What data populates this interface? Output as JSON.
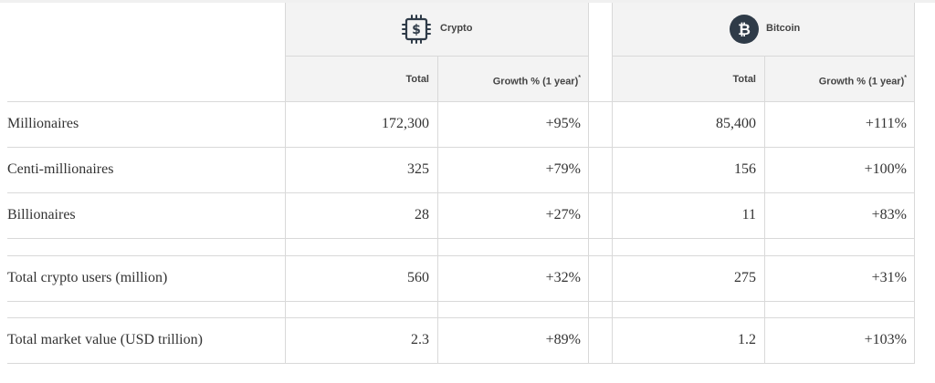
{
  "columns": [
    {
      "name": "Crypto",
      "icon": "dollar-chip-icon",
      "sub": [
        "Total",
        "Growth % (1 year)"
      ],
      "footnote": "*"
    },
    {
      "name": "Bitcoin",
      "icon": "bitcoin-icon",
      "sub": [
        "Total",
        "Growth % (1 year)"
      ],
      "footnote": "*"
    }
  ],
  "rows": [
    {
      "label": "Millionaires",
      "values": [
        "172,300",
        "+95%",
        "85,400",
        "+111%"
      ]
    },
    {
      "label": "Centi-millionaires",
      "values": [
        "325",
        "+79%",
        "156",
        "+100%"
      ]
    },
    {
      "label": "Billionaires",
      "values": [
        "28",
        "+27%",
        "11",
        "+83%"
      ]
    },
    {
      "label": "Total crypto users (million)",
      "values": [
        "560",
        "+32%",
        "275",
        "+31%"
      ]
    },
    {
      "label": "Total market value (USD trillion)",
      "values": [
        "2.3",
        "+89%",
        "1.2",
        "+103%"
      ]
    }
  ],
  "colors": {
    "header_bg": "#f3f3f3",
    "icon_dark": "#2f3b48",
    "border": "#d9d9d9"
  }
}
